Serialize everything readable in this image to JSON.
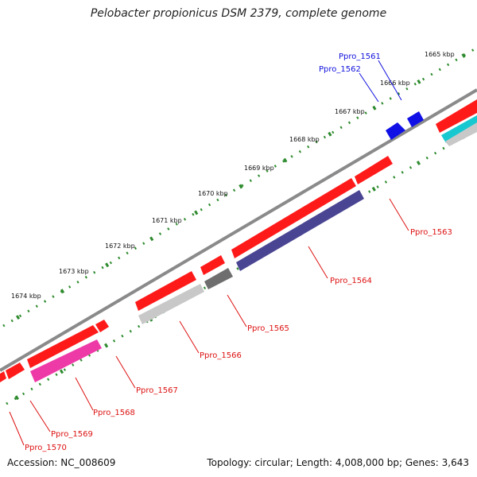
{
  "title": "Pelobacter propionicus DSM 2379, complete genome",
  "footer": {
    "accession": "Accession: NC_008609",
    "topology": "Topology: circular; Length: 4,008,000 bp; Genes: 3,643"
  },
  "scale_ticks": [
    {
      "label": "1665 kbp"
    },
    {
      "label": "1666 kbp"
    },
    {
      "label": "1667 kbp"
    },
    {
      "label": "1668 kbp"
    },
    {
      "label": "1669 kbp"
    },
    {
      "label": "1670 kbp"
    },
    {
      "label": "1671 kbp"
    },
    {
      "label": "1672 kbp"
    },
    {
      "label": "1673 kbp"
    },
    {
      "label": "1674 kbp"
    }
  ],
  "gene_labels": [
    {
      "name": "Ppro_1561"
    },
    {
      "name": "Ppro_1562"
    },
    {
      "name": "Ppro_1563"
    },
    {
      "name": "Ppro_1564"
    },
    {
      "name": "Ppro_1565"
    },
    {
      "name": "Ppro_1566"
    },
    {
      "name": "Ppro_1567"
    },
    {
      "name": "Ppro_1568"
    },
    {
      "name": "Ppro_1569"
    },
    {
      "name": "Ppro_1570"
    }
  ],
  "colors": {
    "backbone": "#8a8a8a",
    "tick_dots": "#2e8b2e",
    "gene_red": "#ff1a1a",
    "gene_blue": "#1010e6",
    "gene_navy": "#4a4592",
    "gene_gray_dark": "#6e6e6e",
    "gene_gray_light": "#c8c8c8",
    "gene_magenta": "#ee3aa6",
    "gene_cyan": "#18c8d0",
    "label_red": "#dd1111",
    "label_blue": "#1010dd"
  }
}
